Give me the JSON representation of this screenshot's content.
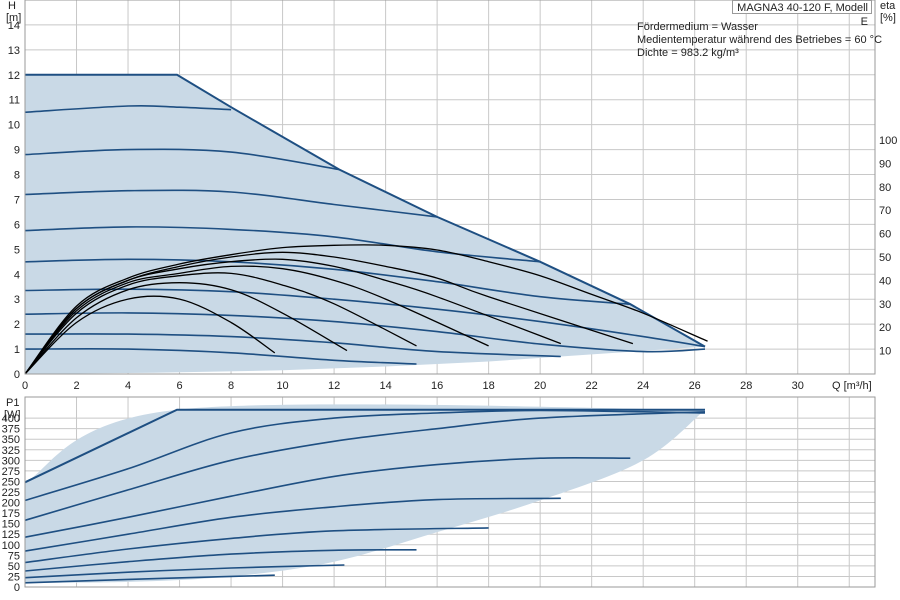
{
  "model": "MAGNA3 40-120 F, Modell E",
  "info": {
    "line1": "Fördermedium = Wasser",
    "line2": "Medientemperatur während des Betriebes = 60 °C",
    "line3": "Dichte = 983.2 kg/m³"
  },
  "colors": {
    "envelope_fill": "#c9d9e6",
    "curve": "#1e4f82",
    "efficiency": "#000000",
    "grid": "#c8c8c8"
  },
  "chart_data": [
    {
      "type": "line",
      "title": "",
      "ylabel": "H\n[m]",
      "y2label": "eta\n[%]",
      "xlabel": "Q [m³/h]",
      "xlim": [
        0,
        33
      ],
      "ylim": [
        0,
        15
      ],
      "y2lim": [
        0,
        100
      ],
      "x_ticks": [
        0,
        2,
        4,
        6,
        8,
        10,
        12,
        14,
        16,
        18,
        20,
        22,
        24,
        26,
        28,
        30
      ],
      "x_tick_labels": [
        "0",
        "2",
        "4",
        "6",
        "8",
        "10",
        "12",
        "14",
        "16",
        "18",
        "20",
        "22",
        "24",
        "26",
        "28",
        "30"
      ],
      "y_ticks": [
        0,
        1,
        2,
        3,
        4,
        5,
        6,
        7,
        8,
        9,
        10,
        11,
        12,
        13,
        14
      ],
      "y_tick_labels": [
        "0",
        "1",
        "2",
        "3",
        "4",
        "5",
        "6",
        "7",
        "8",
        "9",
        "10",
        "11",
        "12",
        "13",
        "14"
      ],
      "y2_ticks": [
        10,
        20,
        30,
        40,
        50,
        60,
        70,
        80,
        90,
        100
      ],
      "y2_tick_labels": [
        "10",
        "20",
        "30",
        "40",
        "50",
        "60",
        "70",
        "80",
        "90",
        "100"
      ],
      "grid": true,
      "envelope": {
        "upper": [
          [
            0,
            12
          ],
          [
            5.9,
            12
          ],
          [
            8,
            10.7
          ],
          [
            12.2,
            8.2
          ],
          [
            16,
            6.3
          ],
          [
            20,
            4.5
          ],
          [
            23.5,
            2.8
          ],
          [
            26.4,
            1.1
          ]
        ],
        "lower": [
          [
            26.4,
            1.1
          ],
          [
            20.8,
            0.7
          ],
          [
            18,
            0.5
          ],
          [
            14,
            0.3
          ],
          [
            10,
            0.15
          ],
          [
            5,
            0.05
          ],
          [
            0,
            0
          ]
        ]
      },
      "head_curves": [
        {
          "h0": 12.0,
          "points": [
            [
              0,
              12
            ],
            [
              5.9,
              12
            ],
            [
              8,
              10.7
            ],
            [
              12.2,
              8.2
            ],
            [
              16,
              6.3
            ],
            [
              20,
              4.5
            ],
            [
              23.5,
              2.8
            ],
            [
              26.4,
              1.1
            ]
          ]
        },
        {
          "h0": 10.5,
          "points": [
            [
              0,
              10.5
            ],
            [
              4,
              10.75
            ],
            [
              6,
              10.7
            ],
            [
              8,
              10.6
            ]
          ]
        },
        {
          "h0": 8.8,
          "points": [
            [
              0,
              8.8
            ],
            [
              4,
              9.0
            ],
            [
              8,
              8.9
            ],
            [
              12.2,
              8.2
            ]
          ]
        },
        {
          "h0": 7.2,
          "points": [
            [
              0,
              7.2
            ],
            [
              4,
              7.35
            ],
            [
              8,
              7.3
            ],
            [
              12,
              6.8
            ],
            [
              16,
              6.3
            ]
          ]
        },
        {
          "h0": 5.75,
          "points": [
            [
              0,
              5.75
            ],
            [
              4,
              5.9
            ],
            [
              8,
              5.8
            ],
            [
              12,
              5.5
            ],
            [
              16,
              4.9
            ],
            [
              20,
              4.5
            ]
          ]
        },
        {
          "h0": 4.5,
          "points": [
            [
              0,
              4.5
            ],
            [
              4,
              4.6
            ],
            [
              8,
              4.5
            ],
            [
              12,
              4.2
            ],
            [
              16,
              3.7
            ],
            [
              20,
              3.1
            ],
            [
              23.5,
              2.8
            ]
          ]
        },
        {
          "h0": 3.35,
          "points": [
            [
              0,
              3.35
            ],
            [
              4,
              3.4
            ],
            [
              8,
              3.3
            ],
            [
              12,
              3.0
            ],
            [
              16,
              2.6
            ],
            [
              20,
              2.1
            ],
            [
              24,
              1.5
            ],
            [
              26.4,
              1.1
            ]
          ]
        },
        {
          "h0": 2.4,
          "points": [
            [
              0,
              2.4
            ],
            [
              4,
              2.45
            ],
            [
              8,
              2.35
            ],
            [
              12,
              2.1
            ],
            [
              16,
              1.7
            ],
            [
              20,
              1.2
            ],
            [
              24,
              0.9
            ],
            [
              26.4,
              1.0
            ]
          ]
        },
        {
          "h0": 1.6,
          "points": [
            [
              0,
              1.6
            ],
            [
              4,
              1.6
            ],
            [
              8,
              1.5
            ],
            [
              12,
              1.25
            ],
            [
              16,
              0.9
            ],
            [
              20.8,
              0.7
            ]
          ]
        },
        {
          "h0": 1.0,
          "points": [
            [
              0,
              1.0
            ],
            [
              4,
              1.0
            ],
            [
              8,
              0.85
            ],
            [
              12,
              0.55
            ],
            [
              15.2,
              0.4
            ]
          ]
        }
      ],
      "efficiency_curves_pct": [
        {
          "qmax": 9.7,
          "points": [
            [
              0,
              0
            ],
            [
              2,
              22
            ],
            [
              4,
              32
            ],
            [
              6,
              32
            ],
            [
              8,
              22
            ],
            [
              9.7,
              9
            ]
          ]
        },
        {
          "qmax": 12.5,
          "points": [
            [
              0,
              0
            ],
            [
              2,
              24
            ],
            [
              4,
              36
            ],
            [
              6,
              39
            ],
            [
              8,
              36
            ],
            [
              10,
              26
            ],
            [
              12.5,
              10
            ]
          ]
        },
        {
          "qmax": 15.2,
          "points": [
            [
              0,
              0
            ],
            [
              2,
              26
            ],
            [
              4,
              38
            ],
            [
              6,
              42
            ],
            [
              8,
              43
            ],
            [
              10,
              38
            ],
            [
              12,
              30
            ],
            [
              15.2,
              12
            ]
          ]
        },
        {
          "qmax": 18.0,
          "points": [
            [
              0,
              0
            ],
            [
              2,
              27
            ],
            [
              4,
              39
            ],
            [
              6,
              43
            ],
            [
              8,
              46
            ],
            [
              10,
              45
            ],
            [
              12,
              40
            ],
            [
              14,
              32
            ],
            [
              18,
              12
            ]
          ]
        },
        {
          "qmax": 20.8,
          "points": [
            [
              0,
              0
            ],
            [
              2,
              28
            ],
            [
              4,
              40
            ],
            [
              6,
              45
            ],
            [
              8,
              48
            ],
            [
              10,
              49
            ],
            [
              12,
              46
            ],
            [
              14,
              40
            ],
            [
              16,
              33
            ],
            [
              20.8,
              13
            ]
          ]
        },
        {
          "qmax": 23.6,
          "points": [
            [
              0,
              0
            ],
            [
              2,
              28
            ],
            [
              4,
              40
            ],
            [
              6,
              46
            ],
            [
              8,
              50
            ],
            [
              10,
              52
            ],
            [
              12,
              50
            ],
            [
              14,
              46
            ],
            [
              16,
              41
            ],
            [
              18,
              33
            ],
            [
              23.6,
              13
            ]
          ]
        },
        {
          "qmax": 26.5,
          "points": [
            [
              0,
              0
            ],
            [
              2,
              29
            ],
            [
              4,
              41
            ],
            [
              6,
              47
            ],
            [
              8,
              51
            ],
            [
              10,
              54
            ],
            [
              12,
              55
            ],
            [
              14,
              55
            ],
            [
              16,
              53
            ],
            [
              18,
              48
            ],
            [
              20,
              42
            ],
            [
              22,
              34
            ],
            [
              24,
              26
            ],
            [
              26.5,
              14
            ]
          ]
        }
      ]
    },
    {
      "type": "line",
      "title": "",
      "ylabel": "P1\n[W]",
      "xlim": [
        0,
        33
      ],
      "ylim": [
        0,
        450
      ],
      "y_ticks": [
        0,
        25,
        50,
        75,
        100,
        125,
        150,
        175,
        200,
        225,
        250,
        275,
        300,
        325,
        350,
        375,
        400
      ],
      "y_tick_labels": [
        "0",
        "25",
        "50",
        "75",
        "100",
        "125",
        "150",
        "175",
        "200",
        "225",
        "250",
        "275",
        "300",
        "325",
        "350",
        "375",
        "400"
      ],
      "grid": true,
      "envelope": {
        "upper": [
          [
            0,
            248
          ],
          [
            5.9,
            420
          ],
          [
            26.4,
            420
          ]
        ],
        "lower": [
          [
            26.4,
            420
          ],
          [
            24,
            300
          ],
          [
            20,
            205
          ],
          [
            16,
            130
          ],
          [
            12,
            60
          ],
          [
            8,
            25
          ],
          [
            4,
            12
          ],
          [
            0,
            10
          ]
        ]
      },
      "power_curves": [
        {
          "points": [
            [
              0,
              248
            ],
            [
              5.9,
              420
            ],
            [
              26.4,
              420
            ]
          ]
        },
        {
          "points": [
            [
              0,
              205
            ],
            [
              4,
              280
            ],
            [
              8,
              365
            ],
            [
              12,
              400
            ],
            [
              16,
              412
            ],
            [
              20,
              418
            ],
            [
              26.4,
              412
            ]
          ]
        },
        {
          "points": [
            [
              0,
              158
            ],
            [
              4,
              230
            ],
            [
              8,
              300
            ],
            [
              12,
              345
            ],
            [
              16,
              375
            ],
            [
              20,
              400
            ],
            [
              26.4,
              415
            ]
          ]
        },
        {
          "points": [
            [
              0,
              118
            ],
            [
              4,
              165
            ],
            [
              8,
              215
            ],
            [
              12,
              262
            ],
            [
              16,
              290
            ],
            [
              20,
              305
            ],
            [
              23.5,
              305
            ]
          ]
        },
        {
          "points": [
            [
              0,
              85
            ],
            [
              4,
              125
            ],
            [
              8,
              165
            ],
            [
              12,
              190
            ],
            [
              16,
              207
            ],
            [
              20.8,
              210
            ]
          ]
        },
        {
          "points": [
            [
              0,
              58
            ],
            [
              4,
              90
            ],
            [
              8,
              115
            ],
            [
              12,
              133
            ],
            [
              18,
              140
            ]
          ]
        },
        {
          "points": [
            [
              0,
              38
            ],
            [
              4,
              60
            ],
            [
              8,
              78
            ],
            [
              12,
              87
            ],
            [
              15.2,
              88
            ]
          ]
        },
        {
          "points": [
            [
              0,
              22
            ],
            [
              4,
              35
            ],
            [
              8,
              45
            ],
            [
              12.4,
              52
            ]
          ]
        },
        {
          "points": [
            [
              0,
              10
            ],
            [
              4,
              18
            ],
            [
              8,
              25
            ],
            [
              9.7,
              28
            ]
          ]
        }
      ]
    }
  ]
}
